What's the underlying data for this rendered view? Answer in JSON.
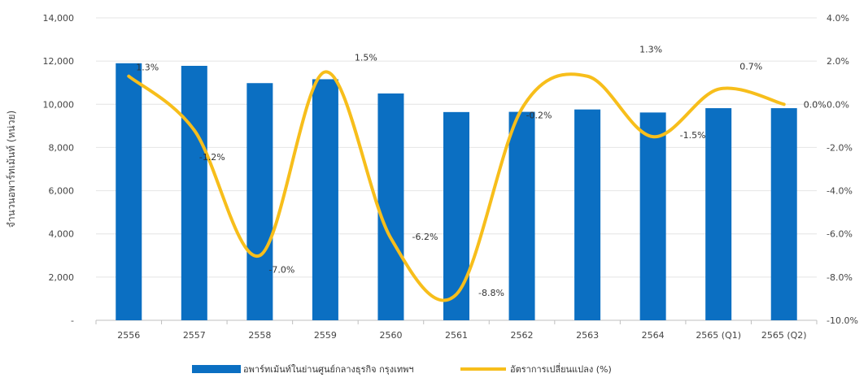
{
  "chart_data": {
    "type": "bar",
    "categories": [
      "2556",
      "2557",
      "2558",
      "2559",
      "2560",
      "2561",
      "2562",
      "2563",
      "2564",
      "2565 (Q1)",
      "2565 (Q2)"
    ],
    "series": [
      {
        "name": "อพาร์ทเม้นท์ในย่านศูนย์กลางธุรกิจ กรุงเทพฯ",
        "type": "bar",
        "axis": "left",
        "color": "#0b6fc2",
        "values": [
          11900,
          11780,
          10980,
          11160,
          10500,
          9640,
          9650,
          9760,
          9620,
          9820,
          9820
        ]
      },
      {
        "name": "อัตราการเปลี่ยนแปลง (%)",
        "type": "line",
        "axis": "right",
        "color": "#f7be1b",
        "values": [
          1.3,
          -1.2,
          -7.0,
          1.5,
          -6.2,
          -8.8,
          -0.2,
          1.3,
          -1.5,
          0.7,
          0.0
        ],
        "labels": [
          "1.3%",
          "-1.2%",
          "-7.0%",
          "1.5%",
          "-6.2%",
          "-8.8%",
          "-0.2%",
          "1.3%",
          "-1.5%",
          "0.7%",
          "0.0%"
        ]
      }
    ],
    "ylabel": "จำนวนอพาร์ทเม้นท์ (หน่วย)",
    "y_left": {
      "range": [
        0,
        14000
      ],
      "ticks": [
        "-",
        "2,000",
        "4,000",
        "6,000",
        "8,000",
        "10,000",
        "12,000",
        "14,000"
      ]
    },
    "y_right": {
      "range": [
        -10,
        4
      ],
      "ticks": [
        "-10.0%",
        "-8.0%",
        "-6.0%",
        "-4.0%",
        "-2.0%",
        "0.0%",
        "2.0%",
        "4.0%"
      ]
    },
    "grid": true,
    "legend_position": "bottom"
  }
}
